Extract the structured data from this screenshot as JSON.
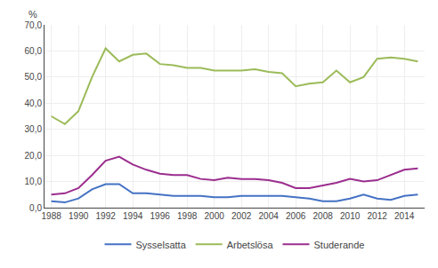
{
  "chart_data": {
    "type": "line",
    "x": [
      1988,
      1989,
      1990,
      1991,
      1992,
      1993,
      1994,
      1995,
      1996,
      1997,
      1998,
      1999,
      2000,
      2001,
      2002,
      2003,
      2004,
      2005,
      2006,
      2007,
      2008,
      2009,
      2010,
      2011,
      2012,
      2013,
      2014,
      2015
    ],
    "series": [
      {
        "name": "Sysselsatta",
        "color": "#4472c4",
        "values": [
          2.5,
          2.0,
          3.5,
          7.0,
          9.0,
          9.0,
          5.5,
          5.5,
          5.0,
          4.5,
          4.5,
          4.5,
          4.0,
          4.0,
          4.5,
          4.5,
          4.5,
          4.5,
          4.0,
          3.5,
          2.5,
          2.5,
          3.5,
          5.0,
          3.5,
          3.0,
          4.5,
          5.0
        ]
      },
      {
        "name": "Arbetslösa",
        "color": "#9bbb59",
        "values": [
          35.0,
          32.0,
          37.0,
          50.0,
          61.0,
          56.0,
          58.5,
          59.0,
          55.0,
          54.5,
          53.5,
          53.5,
          52.5,
          52.5,
          52.5,
          53.0,
          52.0,
          51.5,
          46.5,
          47.5,
          48.0,
          52.5,
          48.0,
          50.0,
          57.0,
          57.5,
          57.0,
          56.0
        ]
      },
      {
        "name": "Studerande",
        "color": "#9b2d8e",
        "values": [
          5.0,
          5.5,
          7.5,
          12.5,
          18.0,
          19.5,
          16.5,
          14.5,
          13.0,
          12.5,
          12.5,
          11.0,
          10.5,
          11.5,
          11.0,
          11.0,
          10.5,
          9.5,
          7.5,
          7.5,
          8.5,
          9.5,
          11.0,
          10.0,
          10.5,
          12.5,
          14.5,
          15.0
        ]
      }
    ],
    "ylabel": "%",
    "xlim": [
      1987.5,
      2015.5
    ],
    "xticks": [
      1988,
      1990,
      1992,
      1994,
      1996,
      1998,
      2000,
      2002,
      2004,
      2006,
      2008,
      2010,
      2012,
      2014
    ],
    "ylim": [
      0,
      70
    ],
    "yticks": [
      {
        "value": 0,
        "label": "0,0"
      },
      {
        "value": 10,
        "label": "10,0"
      },
      {
        "value": 20,
        "label": "20,0"
      },
      {
        "value": 30,
        "label": "30,0"
      },
      {
        "value": 40,
        "label": "40,0"
      },
      {
        "value": 50,
        "label": "50,0"
      },
      {
        "value": 60,
        "label": "60,0"
      },
      {
        "value": 70,
        "label": "70,0"
      }
    ],
    "grid": true,
    "legend": "bottom"
  }
}
